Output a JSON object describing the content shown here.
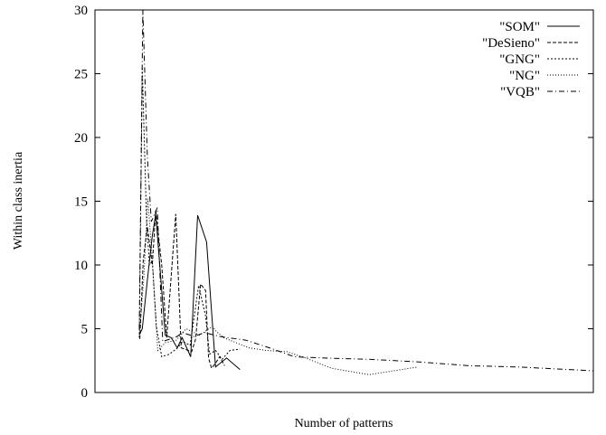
{
  "chart_data": {
    "type": "line",
    "xlabel": "Number of patterns",
    "ylabel": "Within class inertia",
    "xlim": [
      0,
      100
    ],
    "ylim": [
      0,
      30
    ],
    "yticks": [
      0,
      5,
      10,
      15,
      20,
      25,
      30
    ],
    "ytick_labels": [
      "0",
      "5",
      "10",
      "15",
      "20",
      "25",
      "30"
    ],
    "xtick_labels": [],
    "grid": false,
    "legend_position": "top-right",
    "series": [
      {
        "name": "\"SOM\"",
        "dash": "solid",
        "x": [
          8.9,
          9.5,
          10.5,
          11.5,
          12.2,
          13.4,
          14.1,
          15.3,
          16.5,
          17.5,
          19.2,
          20.6,
          22.4,
          24.2,
          26.4,
          29.1
        ],
        "y": [
          4.5,
          5.0,
          8.8,
          12.3,
          14.0,
          8.0,
          4.5,
          4.3,
          3.5,
          4.3,
          2.8,
          13.9,
          11.8,
          2.0,
          2.7,
          1.8
        ]
      },
      {
        "name": "\"DeSieno\"",
        "dash": "dashed",
        "x": [
          9.0,
          9.7,
          10.5,
          11.5,
          12.2,
          13.4,
          14.4,
          16.2,
          17.3,
          19.4,
          20.2,
          21.2,
          22.2,
          22.8,
          23.4,
          24.2,
          25.0,
          26.0
        ],
        "y": [
          4.2,
          10.4,
          13.0,
          10.0,
          14.3,
          10.0,
          4.3,
          14.0,
          3.5,
          3.2,
          4.2,
          8.5,
          8.0,
          2.7,
          1.9,
          2.3,
          2.8,
          2.1
        ]
      },
      {
        "name": "\"GNG\"",
        "dash": "dotted",
        "x": [
          8.9,
          9.5,
          10.3,
          10.9,
          11.5,
          12.3,
          13.4,
          14.9,
          16.6,
          17.6,
          19.1,
          20.8,
          22.2,
          23.0,
          24.2,
          25.5,
          27.1,
          29.1
        ],
        "y": [
          4.3,
          25.5,
          14.0,
          10.0,
          10.3,
          5.2,
          2.8,
          3.0,
          3.5,
          4.0,
          3.7,
          8.4,
          6.0,
          3.0,
          3.3,
          2.6,
          3.3,
          3.4
        ]
      },
      {
        "name": "\"NG\"",
        "dash": "dotted-sparse",
        "x": [
          9.0,
          9.8,
          10.6,
          11.5,
          12.6,
          14.1,
          16.3,
          18.3,
          21.0,
          23.6,
          24.3,
          25.8,
          30.9,
          34.3,
          38.5,
          42.3,
          47.5,
          55.0,
          64.8
        ],
        "y": [
          5.0,
          9.0,
          15.2,
          10.4,
          3.3,
          3.9,
          4.1,
          5.0,
          4.5,
          5.2,
          4.8,
          4.3,
          3.5,
          3.3,
          3.2,
          2.7,
          1.9,
          1.4,
          2.0
        ]
      },
      {
        "name": "\"VQB\"",
        "dash": "dashdot",
        "x": [
          8.9,
          9.6,
          10.5,
          11.3,
          12.5,
          13.6,
          15.1,
          16.5,
          17.5,
          19.9,
          22.0,
          25.0,
          30.3,
          35.0,
          40.0,
          46.0,
          55.0,
          65.0,
          75.0,
          85.0,
          100.0
        ],
        "y": [
          5.0,
          30.0,
          18.5,
          13.4,
          14.5,
          4.0,
          4.2,
          4.4,
          4.7,
          4.4,
          4.7,
          4.4,
          4.1,
          3.5,
          2.8,
          2.7,
          2.6,
          2.4,
          2.1,
          2.0,
          1.7
        ]
      }
    ]
  }
}
